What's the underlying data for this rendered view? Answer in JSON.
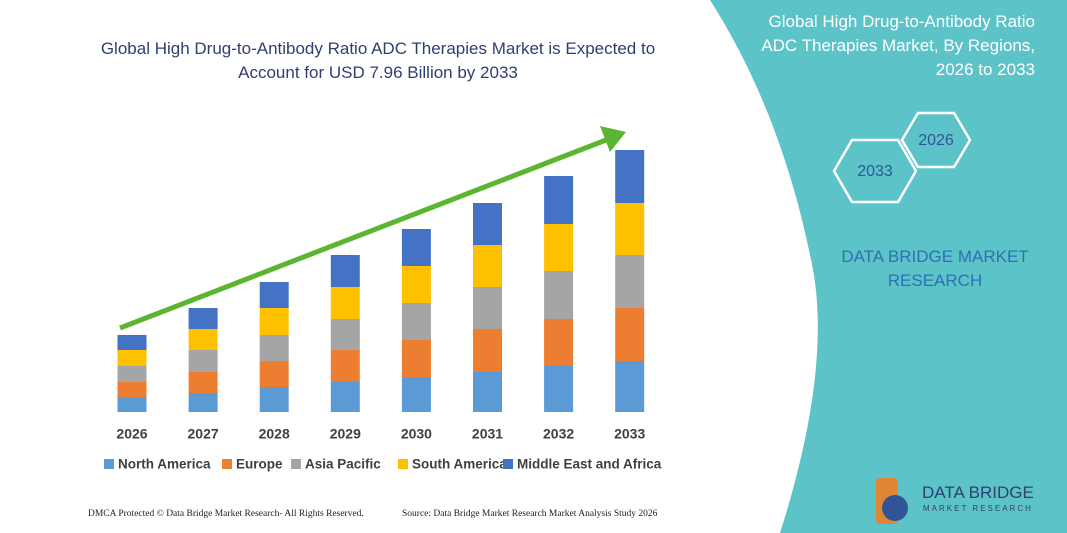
{
  "chart_data": {
    "type": "bar",
    "stacked": true,
    "title": "Global High Drug-to-Antibody Ratio ADC Therapies Market is Expected to Account for USD 7.96 Billion by 2033",
    "categories": [
      "2026",
      "2027",
      "2028",
      "2029",
      "2030",
      "2031",
      "2032",
      "2033"
    ],
    "series": [
      {
        "name": "North America",
        "color": "#5b9bd5",
        "values": [
          14,
          19,
          25,
          30,
          35,
          40,
          46,
          51
        ]
      },
      {
        "name": "Europe",
        "color": "#ed7d31",
        "values": [
          16,
          21,
          26,
          32,
          37,
          43,
          47,
          53
        ]
      },
      {
        "name": "Asia Pacific",
        "color": "#a5a5a5",
        "values": [
          16,
          22,
          26,
          31,
          37,
          42,
          48,
          53
        ]
      },
      {
        "name": "South America",
        "color": "#ffc000",
        "values": [
          16,
          21,
          27,
          32,
          37,
          42,
          47,
          52
        ]
      },
      {
        "name": "Middle East and Africa",
        "color": "#4472c4",
        "values": [
          15,
          21,
          26,
          32,
          37,
          42,
          48,
          53
        ]
      }
    ]
  },
  "side_panel": {
    "title": "Global High Drug-to-Antibody Ratio ADC Therapies Market, By Regions, 2026 to 2033",
    "hexagons": [
      "2026",
      "2033"
    ],
    "brand": "DATA BRIDGE MARKET RESEARCH"
  },
  "footer": {
    "left": "DMCA Protected © Data Bridge Market Research- All Rights Reserved.",
    "right": "Source: Data Bridge Market Research Market Analysis Study 2026"
  },
  "logo": {
    "name": "DATA BRIDGE",
    "tagline": "MARKET RESEARCH"
  }
}
